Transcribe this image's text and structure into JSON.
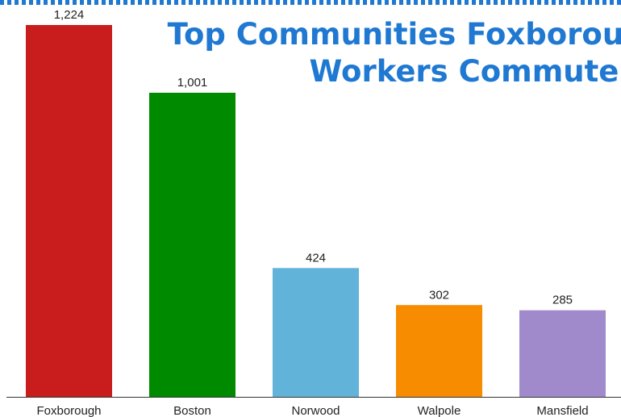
{
  "chart_data": {
    "type": "bar",
    "title_lines": [
      "Top Communities Foxborough",
      "Workers Commute To"
    ],
    "categories": [
      "Foxborough",
      "Boston",
      "Norwood",
      "Walpole",
      "Mansfield"
    ],
    "values": [
      1224,
      1001,
      424,
      302,
      285
    ],
    "value_labels": [
      "1,224",
      "1,001",
      "424",
      "302",
      "285"
    ],
    "colors": [
      "#c91d1d",
      "#008a00",
      "#62b3d9",
      "#f78c00",
      "#a08acb"
    ],
    "xlabel": "",
    "ylabel": "",
    "ylim": [
      0,
      1224
    ],
    "grid": false,
    "legend": "none"
  }
}
